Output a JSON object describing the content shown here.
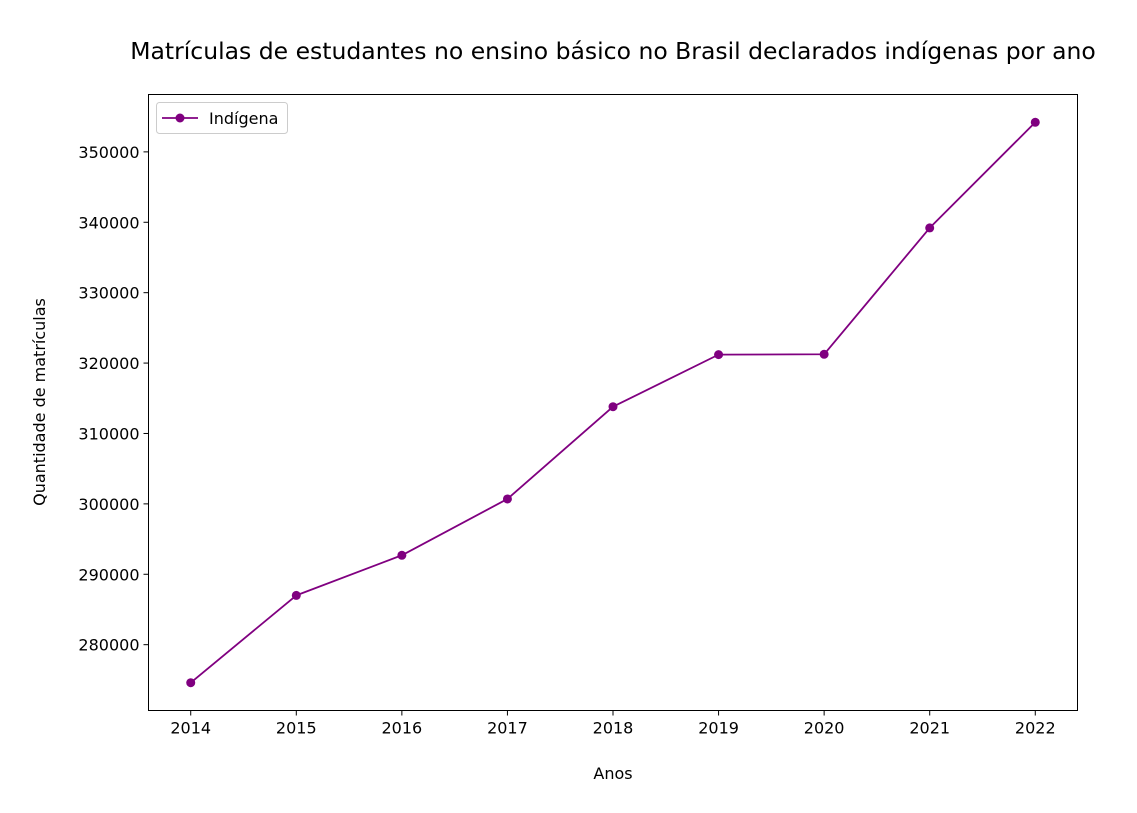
{
  "chart_data": {
    "type": "line",
    "title": "Matrículas de estudantes no ensino básico no Brasil declarados indígenas por ano",
    "xlabel": "Anos",
    "ylabel": "Quantidade de matrículas",
    "x": [
      2014,
      2015,
      2016,
      2017,
      2018,
      2019,
      2020,
      2021,
      2022
    ],
    "series": [
      {
        "name": "Indígena",
        "color": "#800080",
        "marker": "circle",
        "values": [
          274600,
          287000,
          292700,
          300700,
          313800,
          321200,
          321250,
          339200,
          354200
        ]
      }
    ],
    "x_ticks": [
      "2014",
      "2015",
      "2016",
      "2017",
      "2018",
      "2019",
      "2020",
      "2021",
      "2022"
    ],
    "y_ticks": [
      "280000",
      "290000",
      "300000",
      "310000",
      "320000",
      "330000",
      "340000",
      "350000"
    ],
    "y_tick_values": [
      280000,
      290000,
      300000,
      310000,
      320000,
      330000,
      340000,
      350000
    ],
    "xlim": [
      2013.6,
      2022.4
    ],
    "ylim": [
      270650,
      358150
    ],
    "grid": false,
    "legend_position": "top-left"
  }
}
